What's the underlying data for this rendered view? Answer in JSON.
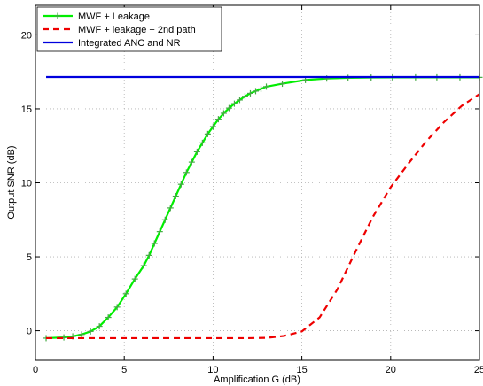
{
  "chart_data": {
    "type": "line",
    "title": "",
    "xlabel": "Amplification G (dB)",
    "ylabel": "Output SNR (dB)",
    "xlim": [
      0,
      25
    ],
    "ylim": [
      -2,
      22
    ],
    "xticks": [
      "0",
      "5",
      "10",
      "15",
      "20",
      "25"
    ],
    "yticks": [
      "0",
      "5",
      "10",
      "15",
      "20"
    ],
    "grid": true,
    "legend_position": "top-left",
    "series": [
      {
        "name": "MWF + Leakage",
        "color": "#00ee00",
        "style": "solid-with-plus-markers",
        "x": [
          0.6,
          1.6,
          2.1,
          2.6,
          3.1,
          3.6,
          4.1,
          4.6,
          5.1,
          5.6,
          6.1,
          6.4,
          6.7,
          7.0,
          7.3,
          7.6,
          7.9,
          8.2,
          8.5,
          8.8,
          9.1,
          9.4,
          9.7,
          10.0,
          10.3,
          10.6,
          10.9,
          11.2,
          11.5,
          11.8,
          12.1,
          12.4,
          12.7,
          13.0,
          13.9,
          15.2,
          16.4,
          17.6,
          18.9,
          20.1,
          21.4,
          22.6,
          23.9,
          25.0
        ],
        "y": [
          -0.5,
          -0.45,
          -0.38,
          -0.25,
          -0.05,
          0.3,
          0.9,
          1.6,
          2.5,
          3.5,
          4.4,
          5.1,
          5.9,
          6.7,
          7.5,
          8.3,
          9.1,
          9.9,
          10.7,
          11.4,
          12.1,
          12.7,
          13.3,
          13.8,
          14.3,
          14.7,
          15.05,
          15.35,
          15.6,
          15.85,
          16.05,
          16.2,
          16.35,
          16.5,
          16.7,
          16.95,
          17.05,
          17.1,
          17.12,
          17.13,
          17.13,
          17.13,
          17.13,
          17.13
        ]
      },
      {
        "name": "MWF + leakage + 2nd path",
        "color": "#ee0000",
        "style": "dashed",
        "x": [
          0.6,
          2.0,
          4.0,
          6.0,
          8.0,
          10.0,
          12.0,
          13.0,
          14.0,
          15.0,
          16.0,
          17.0,
          18.0,
          19.0,
          20.0,
          21.0,
          22.0,
          23.0,
          24.0,
          25.0
        ],
        "y": [
          -0.5,
          -0.5,
          -0.5,
          -0.5,
          -0.5,
          -0.5,
          -0.5,
          -0.48,
          -0.35,
          -0.05,
          0.9,
          2.8,
          5.3,
          7.7,
          9.7,
          11.3,
          12.8,
          14.1,
          15.2,
          16.0
        ]
      },
      {
        "name": "Integrated ANC and NR",
        "color": "#0000dd",
        "style": "solid",
        "x": [
          0.6,
          25.0
        ],
        "y": [
          17.15,
          17.15
        ]
      }
    ]
  }
}
